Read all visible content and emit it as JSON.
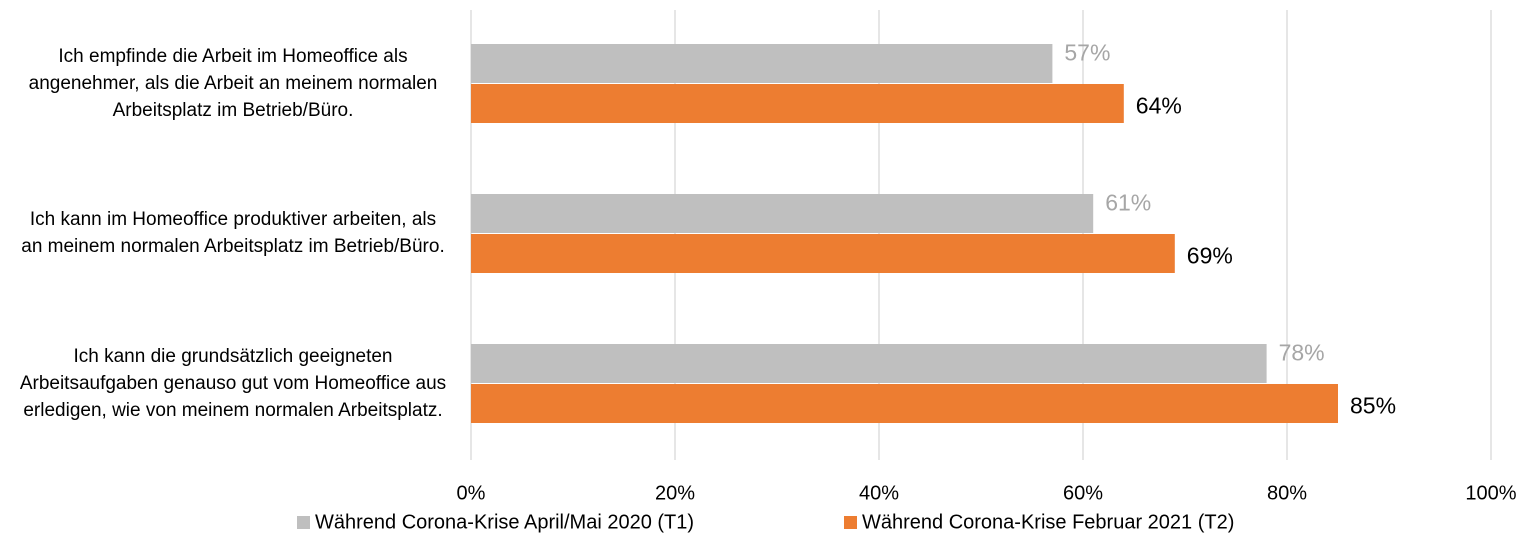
{
  "chart_data": {
    "type": "bar",
    "orientation": "horizontal",
    "categories": [
      "Ich empfinde die Arbeit im Homeoffice als angenehmer, als die Arbeit an meinem normalen Arbeitsplatz im Betrieb/Büro.",
      "Ich kann im Homeoffice produktiver arbeiten, als an meinem normalen Arbeitsplatz im Betrieb/Büro.",
      "Ich kann die grundsätzlich geeigneten Arbeitsaufgaben genauso gut vom Homeoffice aus erledigen, wie von meinem normalen Arbeitsplatz."
    ],
    "series": [
      {
        "name": "Während Corona-Krise April/Mai 2020 (T1)",
        "color": "#bfbfbf",
        "label_color": "#a6a6a6",
        "values": [
          57,
          61,
          78
        ],
        "value_labels": [
          "57%",
          "61%",
          "78%"
        ]
      },
      {
        "name": "Während Corona-Krise Februar 2021 (T2)",
        "color": "#ed7d31",
        "label_color": "#000000",
        "values": [
          64,
          69,
          85
        ],
        "value_labels": [
          "64%",
          "69%",
          "85%"
        ]
      }
    ],
    "xlim": [
      0,
      100
    ],
    "xticks": [
      {
        "value": 0,
        "label": "0%"
      },
      {
        "value": 20,
        "label": "20%"
      },
      {
        "value": 40,
        "label": "40%"
      },
      {
        "value": 60,
        "label": "60%"
      },
      {
        "value": 80,
        "label": "80%"
      },
      {
        "value": 100,
        "label": "100%"
      }
    ],
    "grid": true,
    "legend": "bottom"
  }
}
